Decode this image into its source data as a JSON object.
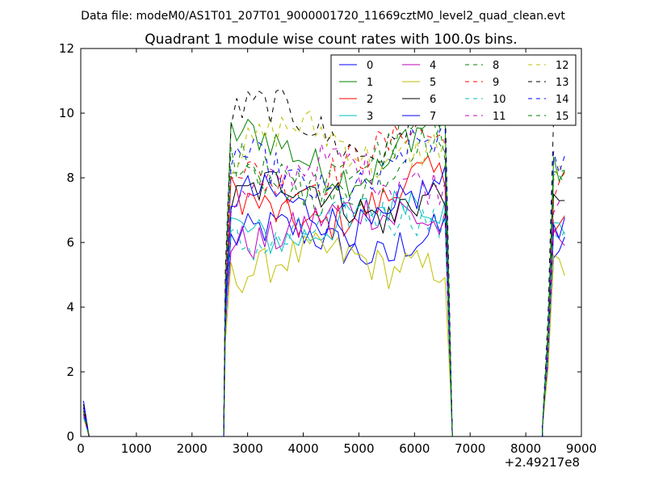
{
  "suptitle": "Data file: modeM0/AS1T01_207T01_9000001720_11669cztM0_level2_quad_clean.evt",
  "chart_data": {
    "type": "line",
    "title": "Quadrant 1 module wise count rates with 100.0s bins.",
    "xlabel": "",
    "ylabel": "",
    "x_offset_label": "+2.49217e8",
    "xlim": [
      0,
      9000
    ],
    "ylim": [
      0,
      12
    ],
    "x_ticks": [
      0,
      1000,
      2000,
      3000,
      4000,
      5000,
      6000,
      7000,
      8000,
      9000
    ],
    "y_ticks": [
      0,
      2,
      4,
      6,
      8,
      10,
      12
    ],
    "grid": false,
    "legend_position": "top-right",
    "legend_columns": 4,
    "segments": [
      {
        "x_start": 50,
        "x_end": 150,
        "bins": 2
      },
      {
        "x_start": 2600,
        "x_end": 6650,
        "bins": 41
      },
      {
        "x_start": 8300,
        "x_end": 8700,
        "bins": 5
      }
    ],
    "gap_value": 0,
    "series": [
      {
        "name": "0",
        "color": "#0000ff",
        "dash": "solid",
        "start": 1.1,
        "level": 6.0,
        "late": 5.8
      },
      {
        "name": "1",
        "color": "#008000",
        "dash": "solid",
        "start": 0.9,
        "level": 8.7,
        "late": 8.2
      },
      {
        "name": "2",
        "color": "#ff0000",
        "dash": "solid",
        "start": 0.9,
        "level": 7.1,
        "late": 6.8
      },
      {
        "name": "3",
        "color": "#00bfbf",
        "dash": "solid",
        "start": 0.7,
        "level": 6.6,
        "late": 6.4
      },
      {
        "name": "4",
        "color": "#bf00bf",
        "dash": "solid",
        "start": 0.8,
        "level": 6.5,
        "late": 6.0
      },
      {
        "name": "5",
        "color": "#bfbf00",
        "dash": "solid",
        "start": 0.6,
        "level": 5.3,
        "late": 5.2
      },
      {
        "name": "6",
        "color": "#000000",
        "dash": "solid",
        "start": 0.8,
        "level": 7.3,
        "late": 7.0
      },
      {
        "name": "7",
        "color": "#0000ff",
        "dash": "solid",
        "start": 0.7,
        "level": 7.0,
        "late": 6.6
      },
      {
        "name": "8",
        "color": "#008000",
        "dash": "dashed",
        "start": 0.8,
        "level": 8.0,
        "late": 7.9
      },
      {
        "name": "9",
        "color": "#ff0000",
        "dash": "dashed",
        "start": 0.8,
        "level": 8.4,
        "late": 7.8
      },
      {
        "name": "10",
        "color": "#00bfbf",
        "dash": "dashed",
        "start": 0.6,
        "level": 6.4,
        "late": 6.4
      },
      {
        "name": "11",
        "color": "#bf00bf",
        "dash": "dashed",
        "start": 0.7,
        "level": 7.9,
        "late": 7.4
      },
      {
        "name": "12",
        "color": "#bfbf00",
        "dash": "dashed",
        "start": 0.9,
        "level": 8.9,
        "late": 8.0
      },
      {
        "name": "13",
        "color": "#000000",
        "dash": "dashed",
        "start": 1.0,
        "level": 9.5,
        "late": 9.4
      },
      {
        "name": "14",
        "color": "#0000ff",
        "dash": "dashed",
        "start": 0.9,
        "level": 8.1,
        "late": 8.4
      },
      {
        "name": "15",
        "color": "#008000",
        "dash": "dashed",
        "start": 0.8,
        "level": 8.3,
        "late": 8.6
      }
    ]
  }
}
